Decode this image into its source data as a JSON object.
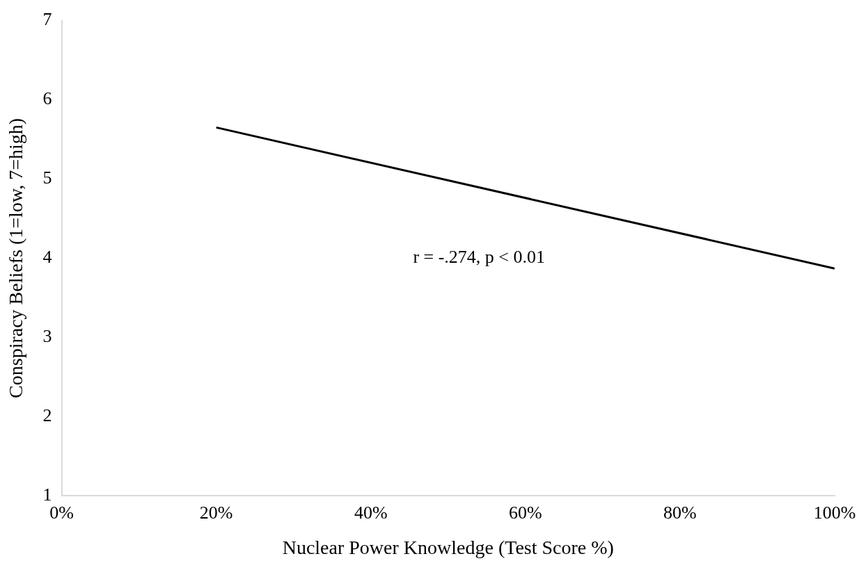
{
  "chart_data": {
    "type": "line",
    "xlabel": "Nuclear Power Knowledge (Test Score %)",
    "ylabel": "Conspiracy Beliefs (1=low, 7=high)",
    "xlim": [
      0,
      100
    ],
    "xticks": [
      {
        "value": 0,
        "label": "0%"
      },
      {
        "value": 20,
        "label": "20%"
      },
      {
        "value": 40,
        "label": "40%"
      },
      {
        "value": 60,
        "label": "60%"
      },
      {
        "value": 80,
        "label": "80%"
      },
      {
        "value": 100,
        "label": "100%"
      }
    ],
    "ylim": [
      1,
      7
    ],
    "yticks": [
      1,
      2,
      3,
      4,
      5,
      6,
      7
    ],
    "grid": false,
    "legend": false,
    "marker": "none",
    "line_style": "solid",
    "series": [
      {
        "color": "#000000",
        "x": [
          20,
          100
        ],
        "values": [
          5.65,
          3.87
        ]
      }
    ],
    "annotations": [
      "r = -.274, p < 0.01"
    ]
  }
}
